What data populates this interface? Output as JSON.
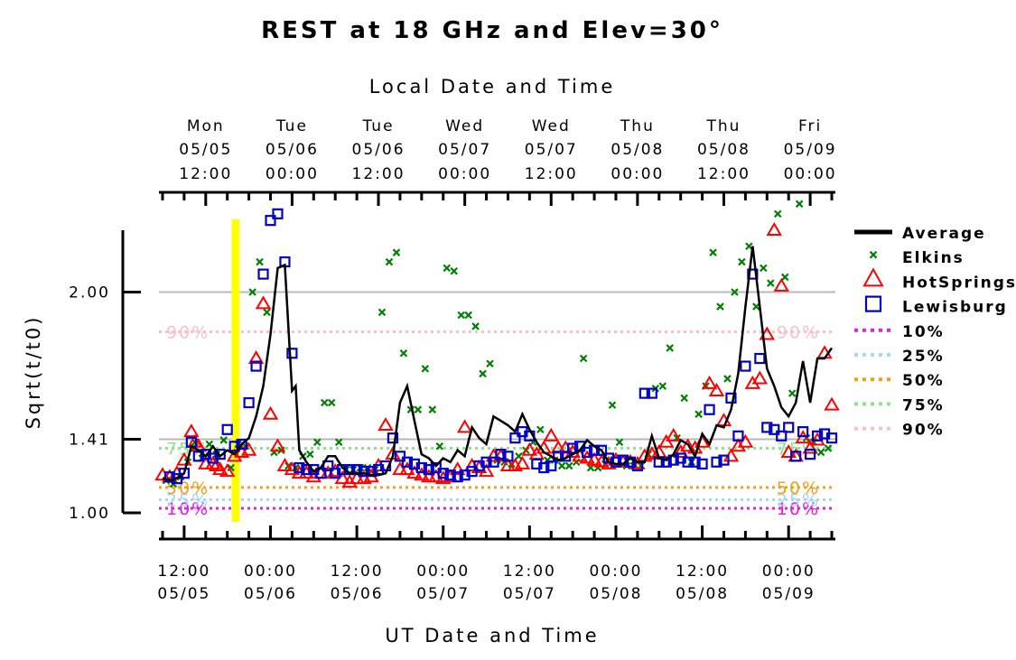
{
  "chart_data": {
    "type": "line",
    "title": "REST at 18 GHz and Elev=30°",
    "top_axis_title": "Local Date and Time",
    "bottom_axis_title": "UT Date and Time",
    "ylabel": "Sqrt(t/t0)",
    "yscale": "sqrt",
    "ylim": [
      1.0,
      2.2
    ],
    "yticks": [
      {
        "value": 1.0,
        "label": "1.00"
      },
      {
        "value": 1.414,
        "label": "1.41"
      },
      {
        "value": 2.0,
        "label": "2.00"
      }
    ],
    "xlim_hours": [
      -3.5,
      90.5
    ],
    "highlight_span_hours": [
      6.6,
      7.7
    ],
    "top_ticks": [
      {
        "hour": 3,
        "day": "Mon",
        "date": "05/05",
        "time": "12:00"
      },
      {
        "hour": 15,
        "day": "Tue",
        "date": "05/06",
        "time": "00:00"
      },
      {
        "hour": 27,
        "day": "Tue",
        "date": "05/06",
        "time": "12:00"
      },
      {
        "hour": 39,
        "day": "Wed",
        "date": "05/07",
        "time": "00:00"
      },
      {
        "hour": 51,
        "day": "Wed",
        "date": "05/07",
        "time": "12:00"
      },
      {
        "hour": 63,
        "day": "Thu",
        "date": "05/08",
        "time": "00:00"
      },
      {
        "hour": 75,
        "day": "Thu",
        "date": "05/08",
        "time": "12:00"
      },
      {
        "hour": 87,
        "day": "Fri",
        "date": "05/09",
        "time": "00:00"
      }
    ],
    "bottom_ticks": [
      {
        "hour": 0,
        "time": "12:00",
        "date": "05/05"
      },
      {
        "hour": 12,
        "time": "00:00",
        "date": "05/06"
      },
      {
        "hour": 24,
        "time": "12:00",
        "date": "05/06"
      },
      {
        "hour": 36,
        "time": "00:00",
        "date": "05/07"
      },
      {
        "hour": 48,
        "time": "12:00",
        "date": "05/07"
      },
      {
        "hour": 60,
        "time": "00:00",
        "date": "05/08"
      },
      {
        "hour": 72,
        "time": "12:00",
        "date": "05/08"
      },
      {
        "hour": 84,
        "time": "00:00",
        "date": "05/09"
      }
    ],
    "percentile_lines": [
      {
        "name": "10%",
        "value": 1.03,
        "color": "#e020e0"
      },
      {
        "name": "25%",
        "value": 1.085,
        "color": "#a8d8f0"
      },
      {
        "name": "50%",
        "value": 1.16,
        "color": "#f0a020"
      },
      {
        "name": "75%",
        "value": 1.37,
        "color": "#90e090"
      },
      {
        "name": "90%",
        "value": 1.86,
        "color": "#f8c0c8"
      }
    ],
    "series": [
      {
        "name": "Average",
        "color": "#000000",
        "marker": "line",
        "x": [
          -3,
          -1.5,
          0,
          1,
          2,
          3,
          4,
          5,
          6,
          7,
          8,
          9,
          10,
          11,
          12,
          13,
          14,
          15,
          15.5,
          16,
          17,
          18,
          19,
          20,
          21,
          22,
          23,
          24,
          25,
          26,
          27,
          28,
          29,
          30,
          31,
          32,
          33,
          34,
          35,
          36,
          37,
          38,
          39,
          40,
          41,
          42,
          43,
          44,
          45,
          46,
          47,
          48,
          49,
          50,
          51,
          52,
          53,
          54,
          55,
          56,
          57,
          58,
          59,
          60,
          61,
          62,
          63,
          64,
          65,
          66,
          67,
          68,
          69,
          70,
          71,
          72,
          73,
          74,
          75,
          76,
          77,
          78,
          79,
          80,
          81,
          82,
          83,
          84,
          85,
          86,
          87,
          88,
          89,
          90
        ],
        "y": [
          1.21,
          1.2,
          1.24,
          1.38,
          1.36,
          1.33,
          1.38,
          1.33,
          1.36,
          1.34,
          1.39,
          1.42,
          1.52,
          1.65,
          1.85,
          2.08,
          2.09,
          1.63,
          1.65,
          1.36,
          1.3,
          1.25,
          1.27,
          1.33,
          1.33,
          1.27,
          1.24,
          1.24,
          1.24,
          1.23,
          1.23,
          1.24,
          1.33,
          1.58,
          1.65,
          1.5,
          1.34,
          1.32,
          1.28,
          1.32,
          1.3,
          1.36,
          1.33,
          1.47,
          1.42,
          1.39,
          1.52,
          1.5,
          1.48,
          1.45,
          1.53,
          1.46,
          1.4,
          1.35,
          1.33,
          1.31,
          1.32,
          1.34,
          1.36,
          1.41,
          1.38,
          1.36,
          1.3,
          1.29,
          1.29,
          1.32,
          1.3,
          1.3,
          1.43,
          1.32,
          1.31,
          1.34,
          1.41,
          1.39,
          1.33,
          1.44,
          1.39,
          1.48,
          1.47,
          1.55,
          1.7,
          1.95,
          2.15,
          1.95,
          1.72,
          1.65,
          1.56,
          1.52,
          1.58,
          1.75,
          1.58,
          1.76,
          1.76,
          1.8
        ],
        "values_note": ""
      },
      {
        "name": "Elkins",
        "color": "#008000",
        "marker": "x",
        "x": [
          -2.5,
          -1.5,
          -0.5,
          0.5,
          1.5,
          2.5,
          3.5,
          4.5,
          5.5,
          6.5,
          7.5,
          8.5,
          9.5,
          10.5,
          11.5,
          12.5,
          13.5,
          14.5,
          15.5,
          16.5,
          17.5,
          18.5,
          19.5,
          20.5,
          21.5,
          22.5,
          23.5,
          24.5,
          25.5,
          26.5,
          27.5,
          28.5,
          29.5,
          30.5,
          31.5,
          32.5,
          33.5,
          34.5,
          35.5,
          36.5,
          37.5,
          38.5,
          39.5,
          40.5,
          41.5,
          42.5,
          43.5,
          44.5,
          45.5,
          46.5,
          47.5,
          48.5,
          49.5,
          50.5,
          51.5,
          52.5,
          53.5,
          54.5,
          55.5,
          56.5,
          57.5,
          58.5,
          59.5,
          60.5,
          61.5,
          62.5,
          63.5,
          64.5,
          65.5,
          66.5,
          67.5,
          68.5,
          69.5,
          70.5,
          71.5,
          72.5,
          73.5,
          74.5,
          75.5,
          76.5,
          77.5,
          78.5,
          79.5,
          80.5,
          81.5,
          82.5,
          83.5,
          84.5,
          85.5,
          86.5,
          87.5,
          88.5,
          89.5
        ],
        "y": [
          1.2,
          1.18,
          1.22,
          1.3,
          1.4,
          1.32,
          1.39,
          1.34,
          1.41,
          1.27,
          1.39,
          1.38,
          2.0,
          2.1,
          1.93,
          1.35,
          1.36,
          1.28,
          1.27,
          1.33,
          1.34,
          1.4,
          1.58,
          1.58,
          1.4,
          1.26,
          1.26,
          1.27,
          1.27,
          1.26,
          1.93,
          2.1,
          2.13,
          1.78,
          1.55,
          1.55,
          1.72,
          1.55,
          1.38,
          2.08,
          2.07,
          1.92,
          1.92,
          1.88,
          1.7,
          1.74,
          1.31,
          1.3,
          1.29,
          1.33,
          1.36,
          1.4,
          1.46,
          1.31,
          1.31,
          1.28,
          1.28,
          1.3,
          1.76,
          1.27,
          1.27,
          1.29,
          1.57,
          1.4,
          1.28,
          1.28,
          1.28,
          1.34,
          1.64,
          1.65,
          1.8,
          1.42,
          1.6,
          1.3,
          1.53,
          1.65,
          2.13,
          1.95,
          1.68,
          2.0,
          2.1,
          2.15,
          1.95,
          2.08,
          2.03,
          2.25,
          2.05,
          1.62,
          2.28,
          1.42,
          1.4,
          1.35,
          1.37
        ]
      },
      {
        "name": "HotSprings",
        "color": "#ff0000",
        "marker": "triangle",
        "x": [
          -3,
          -2,
          -1,
          0,
          1,
          1.5,
          2,
          3,
          4,
          4.5,
          5,
          6,
          7,
          8,
          9,
          10,
          11,
          12,
          13,
          14,
          15,
          16,
          17,
          18,
          19,
          20,
          21,
          22,
          23,
          24,
          25,
          26,
          27,
          28,
          29,
          30,
          31,
          32,
          33,
          34,
          35,
          36,
          37,
          38,
          39,
          40,
          41,
          42,
          43,
          44,
          45,
          46,
          47,
          48,
          49,
          50,
          51,
          52,
          53,
          54,
          55,
          56,
          57,
          58,
          59,
          60,
          61,
          62,
          63,
          64,
          65,
          66,
          67,
          68,
          69,
          70,
          71,
          72,
          73,
          74,
          75,
          76,
          77,
          78,
          79,
          80,
          81,
          82,
          83,
          84,
          85,
          86,
          87,
          88,
          89,
          90
        ],
        "y": [
          1.23,
          1.22,
          1.24,
          1.31,
          1.45,
          1.4,
          1.38,
          1.29,
          1.29,
          1.28,
          1.26,
          1.25,
          1.33,
          1.35,
          1.36,
          1.76,
          1.96,
          1.53,
          1.38,
          1.28,
          1.26,
          1.24,
          1.24,
          1.22,
          1.24,
          1.24,
          1.25,
          1.21,
          1.19,
          1.21,
          1.21,
          1.22,
          1.28,
          1.48,
          1.34,
          1.26,
          1.26,
          1.24,
          1.23,
          1.22,
          1.22,
          1.21,
          1.22,
          1.26,
          1.47,
          1.28,
          1.27,
          1.25,
          1.33,
          1.33,
          1.28,
          1.28,
          1.29,
          1.36,
          1.34,
          1.37,
          1.43,
          1.37,
          1.37,
          1.35,
          1.33,
          1.32,
          1.31,
          1.3,
          1.29,
          1.31,
          1.3,
          1.3,
          1.29,
          1.33,
          1.34,
          1.35,
          1.4,
          1.43,
          1.35,
          1.38,
          1.37,
          1.4,
          1.66,
          1.63,
          1.5,
          1.33,
          1.38,
          1.4,
          1.66,
          1.68,
          1.85,
          2.2,
          2.02,
          1.35,
          1.33,
          1.42,
          1.37,
          1.41,
          1.78,
          1.57
        ],
        "values_note": ""
      },
      {
        "name": "Lewisburg",
        "color": "#0000cc",
        "marker": "square",
        "x": [
          -2,
          -1,
          0,
          1,
          2,
          3,
          4,
          5,
          6,
          7,
          8,
          9,
          10,
          11,
          12,
          13,
          14,
          15,
          16,
          17,
          18,
          19,
          20,
          21,
          22,
          23,
          24,
          25,
          26,
          27,
          28,
          29,
          30,
          31,
          32,
          33,
          34,
          35,
          36,
          37,
          38,
          39,
          40,
          41,
          42,
          43,
          44,
          45,
          46,
          47,
          48,
          49,
          50,
          51,
          52,
          53,
          54,
          55,
          56,
          57,
          58,
          59,
          60,
          61,
          62,
          63,
          64,
          65,
          66,
          67,
          68,
          69,
          70,
          71,
          72,
          73,
          74,
          75,
          76,
          77,
          78,
          79,
          80,
          81,
          82,
          83,
          84,
          85,
          86,
          87,
          88,
          89,
          90
        ],
        "y": [
          1.22,
          1.21,
          1.24,
          1.4,
          1.33,
          1.34,
          1.32,
          1.34,
          1.46,
          1.38,
          1.39,
          1.58,
          1.73,
          2.06,
          2.23,
          2.25,
          2.1,
          1.78,
          1.27,
          1.26,
          1.26,
          1.24,
          1.28,
          1.24,
          1.26,
          1.26,
          1.26,
          1.25,
          1.25,
          1.26,
          1.28,
          1.42,
          1.33,
          1.3,
          1.29,
          1.27,
          1.26,
          1.27,
          1.24,
          1.23,
          1.22,
          1.23,
          1.25,
          1.28,
          1.3,
          1.3,
          1.34,
          1.33,
          1.42,
          1.45,
          1.43,
          1.29,
          1.27,
          1.28,
          1.33,
          1.33,
          1.37,
          1.38,
          1.35,
          1.36,
          1.36,
          1.32,
          1.3,
          1.31,
          1.3,
          1.28,
          1.62,
          1.62,
          1.3,
          1.3,
          1.31,
          1.32,
          1.3,
          1.3,
          1.29,
          1.55,
          1.3,
          1.31,
          1.6,
          1.43,
          1.73,
          2.06,
          1.76,
          1.47,
          1.46,
          1.43,
          1.47,
          1.33,
          1.45,
          1.34,
          1.43,
          1.44,
          1.42
        ]
      }
    ],
    "legend": {
      "placement": "right",
      "items": [
        "Average",
        "Elkins",
        "HotSprings",
        "Lewisburg",
        "10%",
        "25%",
        "50%",
        "75%",
        "90%"
      ]
    }
  }
}
